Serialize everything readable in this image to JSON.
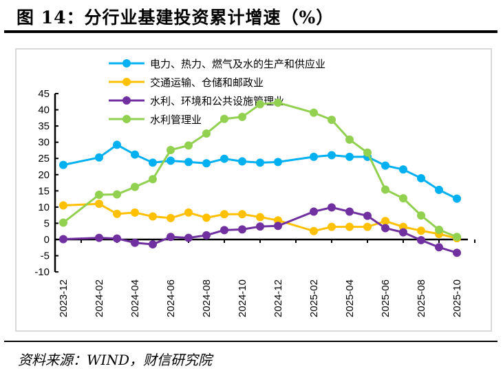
{
  "title": "图 14：分行业基建投资累计增速（%）",
  "source": "资料来源：WIND，财信研究院",
  "chart_data": {
    "type": "line",
    "x": [
      "2023-12",
      "2024-02",
      "2024-03",
      "2024-04",
      "2024-05",
      "2024-06",
      "2024-07",
      "2024-08",
      "2024-09",
      "2024-10",
      "2024-11",
      "2024-12",
      "2025-02",
      "2025-03",
      "2025-04",
      "2025-05",
      "2025-06",
      "2025-07",
      "2025-08",
      "2025-09",
      "2025-10"
    ],
    "xtick_labels": [
      "2023-12",
      "2024-02",
      "2024-04",
      "2024-06",
      "2024-08",
      "2024-10",
      "2024-12",
      "2025-02",
      "2025-04",
      "2025-06",
      "2025-08",
      "2025-10"
    ],
    "ylim": [
      -10,
      45
    ],
    "yticks": [
      "-10",
      "-5",
      "0",
      "5",
      "10",
      "15",
      "20",
      "25",
      "30",
      "35",
      "40",
      "45"
    ],
    "grid": false,
    "legend_position": "top-center",
    "series": [
      {
        "name": "电力、热力、燃气及水的生产和供应业",
        "color": "#00b0f0",
        "values": [
          23.0,
          25.3,
          29.2,
          26.2,
          23.7,
          24.3,
          23.9,
          23.5,
          24.9,
          24.1,
          23.7,
          23.9,
          25.5,
          26.0,
          25.5,
          25.5,
          22.8,
          21.6,
          18.9,
          15.3,
          12.6
        ]
      },
      {
        "name": "交通运输、仓储和邮政业",
        "color": "#ffc000",
        "values": [
          10.5,
          11.0,
          7.9,
          8.3,
          7.1,
          6.6,
          8.3,
          6.7,
          7.8,
          7.8,
          6.9,
          5.9,
          2.6,
          3.9,
          3.9,
          3.9,
          5.7,
          3.9,
          2.7,
          1.7,
          0.4
        ]
      },
      {
        "name": "水利、环境和公共设施管理业",
        "color": "#7030a0",
        "values": [
          0.1,
          0.5,
          0.3,
          -1.0,
          -1.5,
          0.8,
          0.5,
          1.3,
          2.9,
          3.1,
          4.0,
          4.2,
          8.6,
          9.9,
          8.6,
          7.3,
          3.5,
          2.2,
          -0.2,
          -2.4,
          -4.1
        ]
      },
      {
        "name": "水利管理业",
        "color": "#92d050",
        "values": [
          5.2,
          13.8,
          13.9,
          16.2,
          18.6,
          27.6,
          29.0,
          32.7,
          37.2,
          37.8,
          41.7,
          42.2,
          39.1,
          36.9,
          30.8,
          26.8,
          15.4,
          12.7,
          7.4,
          3.0,
          0.8
        ]
      }
    ]
  }
}
